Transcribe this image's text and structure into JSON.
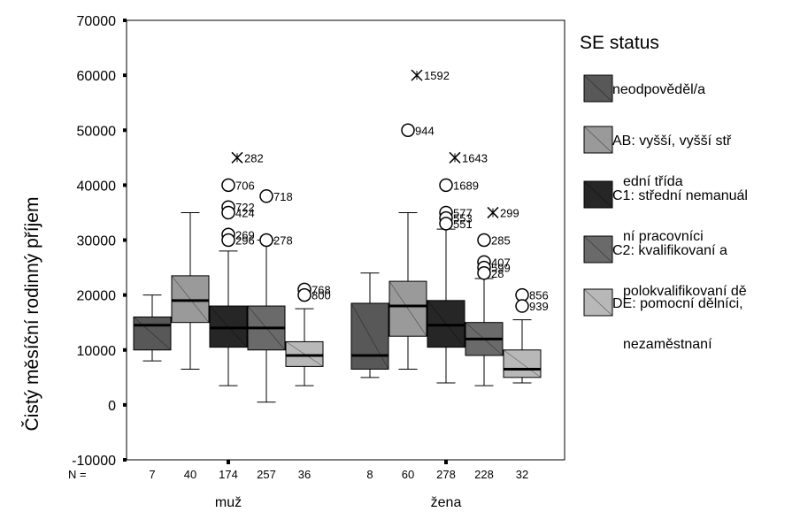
{
  "chart_data": {
    "type": "boxplot",
    "ylabel": "Čistý měsíční rodinný příjem",
    "ylim": [
      -10000,
      70000
    ],
    "yticks": [
      "-10000",
      "0",
      "10000",
      "20000",
      "30000",
      "40000",
      "50000",
      "60000",
      "70000"
    ],
    "n_label": "N =",
    "groups": [
      {
        "name": "muž",
        "boxes": [
          {
            "series": "neodpověděl/a",
            "n": "7",
            "whisker_low": 8000,
            "q1": 10000,
            "median": 14500,
            "q3": 16000,
            "whisker_high": 20000,
            "outliers": []
          },
          {
            "series": "AB: vyšší, vyšší střední třída",
            "n": "40",
            "whisker_low": 6500,
            "q1": 15000,
            "median": 19000,
            "q3": 23500,
            "whisker_high": 35000,
            "outliers": []
          },
          {
            "series": "C1: střední nemanuální pracovníci",
            "n": "174",
            "whisker_low": 3500,
            "q1": 10500,
            "median": 14000,
            "q3": 18000,
            "whisker_high": 28000,
            "outliers": [
              {
                "value": 45000,
                "label": "282",
                "extreme": true
              },
              {
                "value": 40000,
                "label": "706",
                "extreme": false
              },
              {
                "value": 36000,
                "label": "722",
                "extreme": false
              },
              {
                "value": 35000,
                "label": "424",
                "extreme": false
              },
              {
                "value": 31000,
                "label": "269",
                "extreme": false
              },
              {
                "value": 30000,
                "label": "296",
                "extreme": false
              }
            ]
          },
          {
            "series": "C2: kvalifikovaní a polokvalifikovaní dělníci",
            "n": "257",
            "whisker_low": 500,
            "q1": 10000,
            "median": 14000,
            "q3": 18000,
            "whisker_high": 30000,
            "outliers": [
              {
                "value": 38000,
                "label": "718",
                "extreme": false
              },
              {
                "value": 30000,
                "label": "278",
                "extreme": false
              }
            ]
          },
          {
            "series": "DE: pomocní dělníci, nezaměstnaní",
            "n": "36",
            "whisker_low": 3500,
            "q1": 7000,
            "median": 9000,
            "q3": 11500,
            "whisker_high": 17500,
            "outliers": [
              {
                "value": 21000,
                "label": "768",
                "extreme": false
              },
              {
                "value": 20000,
                "label": "800",
                "extreme": false
              }
            ]
          }
        ]
      },
      {
        "name": "žena",
        "boxes": [
          {
            "series": "neodpověděl/a",
            "n": "8",
            "whisker_low": 5000,
            "q1": 6500,
            "median": 9000,
            "q3": 18500,
            "whisker_high": 24000,
            "outliers": []
          },
          {
            "series": "AB: vyšší, vyšší střední třída",
            "n": "60",
            "whisker_low": 6500,
            "q1": 12500,
            "median": 18000,
            "q3": 22500,
            "whisker_high": 35000,
            "outliers": [
              {
                "value": 60000,
                "label": "1592",
                "extreme": true
              },
              {
                "value": 50000,
                "label": "944",
                "extreme": false
              }
            ]
          },
          {
            "series": "C1: střední nemanuální pracovníci",
            "n": "278",
            "whisker_low": 4000,
            "q1": 10500,
            "median": 14500,
            "q3": 19000,
            "whisker_high": 32000,
            "outliers": [
              {
                "value": 45000,
                "label": "1643",
                "extreme": true
              },
              {
                "value": 40000,
                "label": "1689",
                "extreme": false
              },
              {
                "value": 35000,
                "label": "577",
                "extreme": false
              },
              {
                "value": 34000,
                "label": "553",
                "extreme": false
              },
              {
                "value": 33000,
                "label": "551",
                "extreme": false
              }
            ]
          },
          {
            "series": "C2: kvalifikovaní a polokvalifikovaní dělníci",
            "n": "228",
            "whisker_low": 3500,
            "q1": 9000,
            "median": 12000,
            "q3": 15000,
            "whisker_high": 23000,
            "outliers": [
              {
                "value": 35000,
                "label": "299",
                "extreme": true
              },
              {
                "value": 30000,
                "label": "285",
                "extreme": false
              },
              {
                "value": 26000,
                "label": "407",
                "extreme": false
              },
              {
                "value": 25000,
                "label": "599",
                "extreme": false
              },
              {
                "value": 24000,
                "label": "28",
                "extreme": false
              }
            ]
          },
          {
            "series": "DE: pomocní dělníci, nezaměstnaní",
            "n": "32",
            "whisker_low": 4000,
            "q1": 5000,
            "median": 6500,
            "q3": 10000,
            "whisker_high": 15500,
            "outliers": [
              {
                "value": 20000,
                "label": "856",
                "extreme": false
              },
              {
                "value": 18000,
                "label": "939",
                "extreme": false
              }
            ]
          }
        ]
      }
    ],
    "legend": {
      "title": "SE status",
      "placement": "right",
      "items": [
        {
          "lines": [
            "neodpověděl/a"
          ],
          "color": "#585858"
        },
        {
          "lines": [
            "AB: vyšší, vyšší stř",
            "ední třída"
          ],
          "color": "#9a9a9a"
        },
        {
          "lines": [
            "C1: střední nemanuál",
            "ní pracovníci"
          ],
          "color": "#262626"
        },
        {
          "lines": [
            "C2: kvalifikovaní a",
            "polokvalifikovaní dě"
          ],
          "color": "#6a6a6a"
        },
        {
          "lines": [
            "DE: pomocní dělníci,",
            "nezaměstnaní"
          ],
          "color": "#b8b8b8"
        }
      ]
    }
  }
}
